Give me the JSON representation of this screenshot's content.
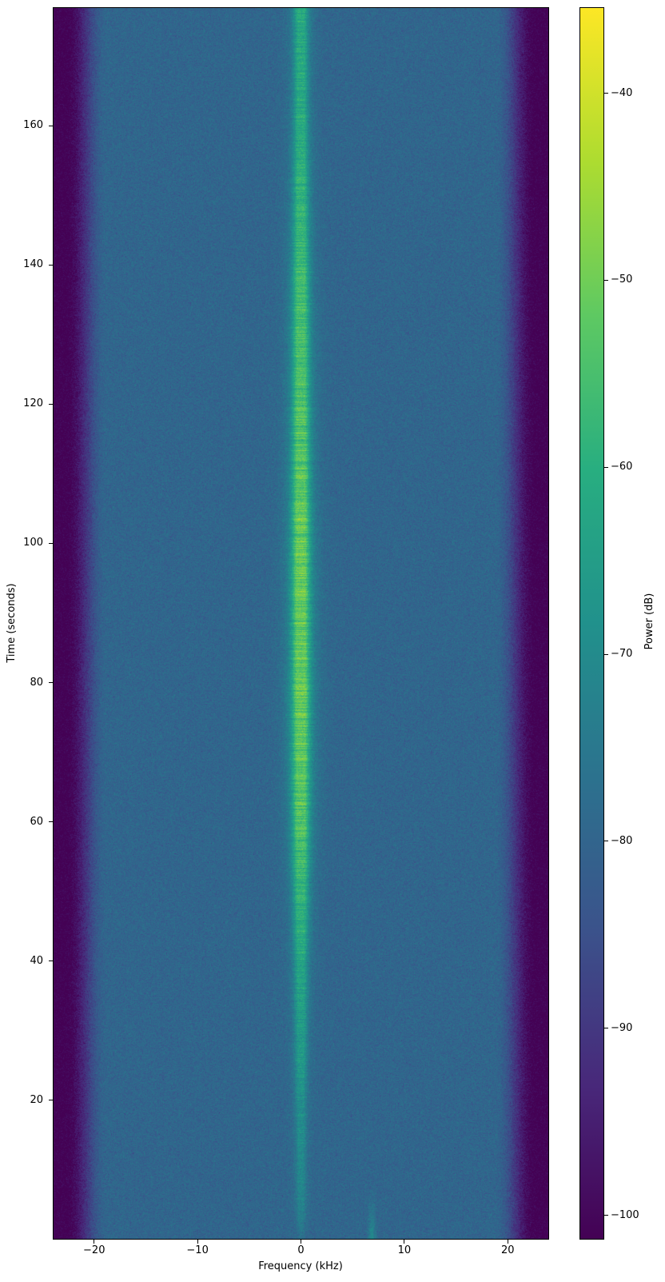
{
  "figure": {
    "background": "#ffffff",
    "axes_color": "#000000",
    "text_color": "#000000"
  },
  "chart_data": {
    "type": "heatmap",
    "subtype": "spectrogram-waterfall",
    "title": "",
    "xlabel": "Frequency (kHz)",
    "ylabel": "Time (seconds)",
    "colorbar_label": "Power (dB)",
    "x_range_khz": [
      -24,
      24
    ],
    "y_range_s": [
      0,
      177
    ],
    "xticks": [
      -20,
      -10,
      0,
      10,
      20
    ],
    "xtick_labels": [
      "−20",
      "−10",
      "0",
      "10",
      "20"
    ],
    "yticks": [
      20,
      40,
      60,
      80,
      100,
      120,
      140,
      160
    ],
    "ytick_labels": [
      "20",
      "40",
      "60",
      "80",
      "100",
      "120",
      "140",
      "160"
    ],
    "colorbar_ticks": [
      -40,
      -50,
      -60,
      -70,
      -80,
      -90,
      -100
    ],
    "colorbar_tick_labels": [
      "−40",
      "−50",
      "−60",
      "−70",
      "−80",
      "−90",
      "−100"
    ],
    "grid": false,
    "legend": "none",
    "color_scale": {
      "colormap": "viridis",
      "vmin_db": -101.3,
      "vmax_db": -35.4,
      "stops": [
        [
          0.0,
          "#440154"
        ],
        [
          0.125,
          "#48287a"
        ],
        [
          0.25,
          "#3b528b"
        ],
        [
          0.375,
          "#2c728e"
        ],
        [
          0.5,
          "#21918c"
        ],
        [
          0.625,
          "#28ae80"
        ],
        [
          0.75,
          "#5ec962"
        ],
        [
          0.875,
          "#addc30"
        ],
        [
          1.0,
          "#fde725"
        ]
      ]
    },
    "render_model": {
      "seed": 1234567,
      "noise_floor_db": -79.5,
      "noise_db": 5,
      "edge_start_khz": 18.8,
      "edge_width_khz": 4.0,
      "edge_drop_db": 22,
      "carrier_freq_khz": 0,
      "carrier_base_db": -80.5,
      "carrier_gain_db": 27,
      "sigma0_khz": 0.18,
      "sigma_gain_khz": 0.42,
      "side_amp": 0.32,
      "side_sigma0_khz": 0.35,
      "side_sigma_gain_khz": 0.85,
      "carrier_envelope": [
        [
          0,
          0.12
        ],
        [
          4,
          0.3
        ],
        [
          15,
          0.38
        ],
        [
          25,
          0.48
        ],
        [
          40,
          0.62
        ],
        [
          55,
          0.85
        ],
        [
          65,
          0.95
        ],
        [
          80,
          1.0
        ],
        [
          100,
          1.0
        ],
        [
          115,
          0.93
        ],
        [
          130,
          0.88
        ],
        [
          145,
          0.78
        ],
        [
          158,
          0.68
        ],
        [
          170,
          0.66
        ],
        [
          177,
          0.68
        ]
      ],
      "streak": {
        "f_khz": 6.9,
        "sigma_khz": 0.25,
        "db": -70,
        "t_max_s": 7
      }
    }
  }
}
